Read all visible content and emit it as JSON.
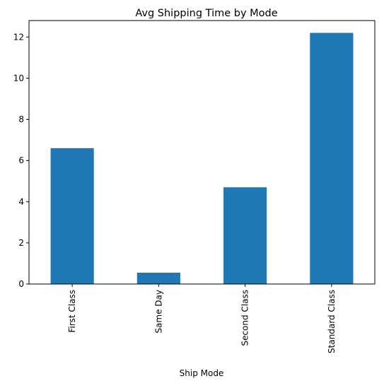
{
  "chart_data": {
    "type": "bar",
    "title": "Avg Shipping Time by Mode",
    "xlabel": "Ship Mode",
    "ylabel": "",
    "categories": [
      "First Class",
      "Same Day",
      "Second Class",
      "Standard Class"
    ],
    "values": [
      6.6,
      0.55,
      4.7,
      12.2
    ],
    "ylim": [
      0,
      12.8
    ],
    "yticks": [
      0,
      2,
      4,
      6,
      8,
      10,
      12
    ],
    "grid": false,
    "legend": "none",
    "bar_color": "#1f77b4"
  }
}
